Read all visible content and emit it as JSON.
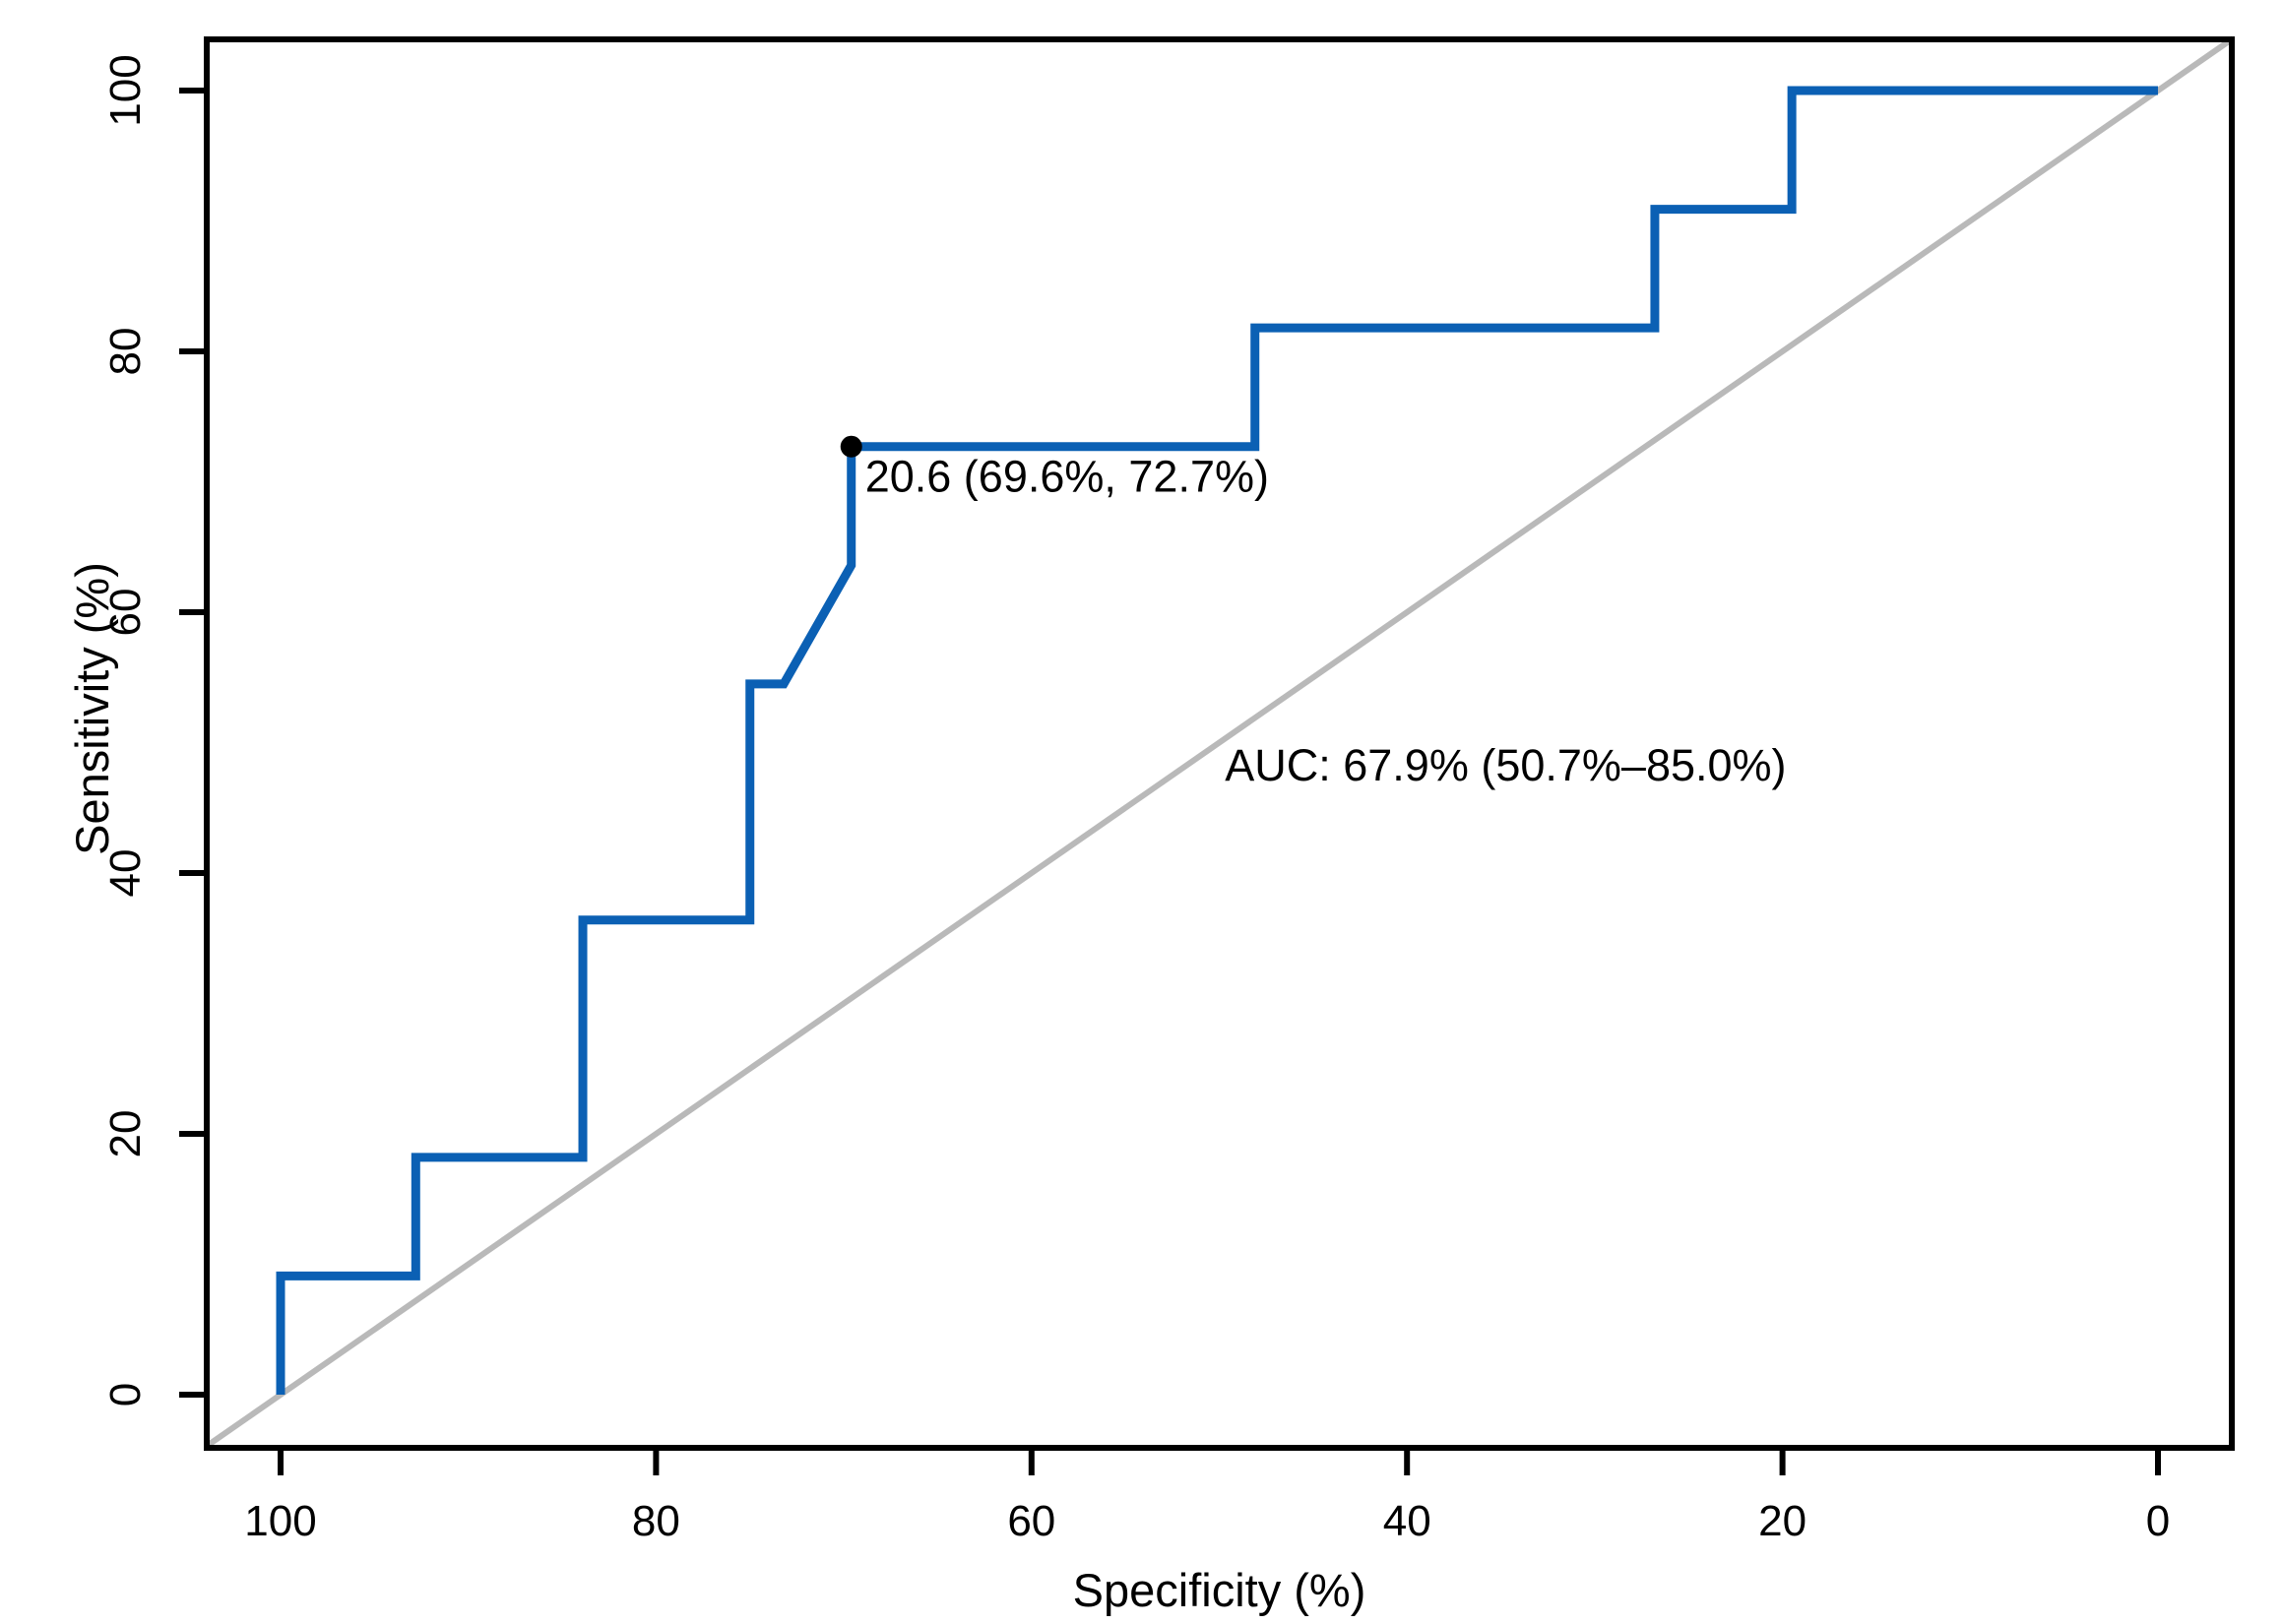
{
  "figure": {
    "kind": "roc-curve-plot",
    "background_color": "#ffffff",
    "title": ""
  },
  "chart_data": {
    "type": "line",
    "subtype": "roc-step-curve",
    "title": "",
    "xlabel": "Specificity (%)",
    "ylabel": "Sensitivity (%)",
    "x_ticks": [
      100,
      80,
      60,
      40,
      20,
      0
    ],
    "y_ticks": [
      0,
      20,
      40,
      60,
      80,
      100
    ],
    "xlim": [
      100,
      0
    ],
    "ylim": [
      0,
      100
    ],
    "x_axis_reversed": true,
    "grid": false,
    "legend_position": "none",
    "axis_color": "#000000",
    "series": [
      {
        "name": "ROC curve",
        "color": "#0b60b4",
        "points_spec_sens": [
          [
            100,
            0
          ],
          [
            100,
            9.1
          ],
          [
            92.8,
            9.1
          ],
          [
            92.8,
            18.2
          ],
          [
            83.9,
            18.2
          ],
          [
            83.9,
            36.4
          ],
          [
            75.0,
            36.4
          ],
          [
            75.0,
            54.5
          ],
          [
            73.2,
            54.5
          ],
          [
            69.6,
            63.6
          ],
          [
            69.6,
            72.7
          ],
          [
            48.1,
            72.7
          ],
          [
            48.1,
            81.8
          ],
          [
            26.8,
            81.8
          ],
          [
            26.8,
            90.9
          ],
          [
            19.5,
            90.9
          ],
          [
            19.5,
            100
          ],
          [
            0,
            100
          ]
        ]
      }
    ],
    "reference_line": {
      "name": "chance diagonal",
      "color": "#b9b9b9",
      "from_spec_sens": [
        104,
        -4
      ],
      "to_spec_sens": [
        -4,
        104
      ]
    },
    "best_threshold": {
      "threshold": "20.6",
      "specificity_pct": 69.6,
      "sensitivity_pct": 72.7,
      "label": "20.6 (69.6%, 72.7%)",
      "marker_color": "#000000",
      "label_color": "#000000",
      "marker_spec_sens": [
        69.6,
        72.7
      ]
    },
    "auc": {
      "label": "AUC: 67.9% (50.7%–85.0%)",
      "value_pct": 67.9,
      "ci_low_pct": 50.7,
      "ci_high_pct": 85.0,
      "color": "#0b60b4",
      "label_start_spec_sens": [
        49.7,
        47.1
      ]
    }
  }
}
